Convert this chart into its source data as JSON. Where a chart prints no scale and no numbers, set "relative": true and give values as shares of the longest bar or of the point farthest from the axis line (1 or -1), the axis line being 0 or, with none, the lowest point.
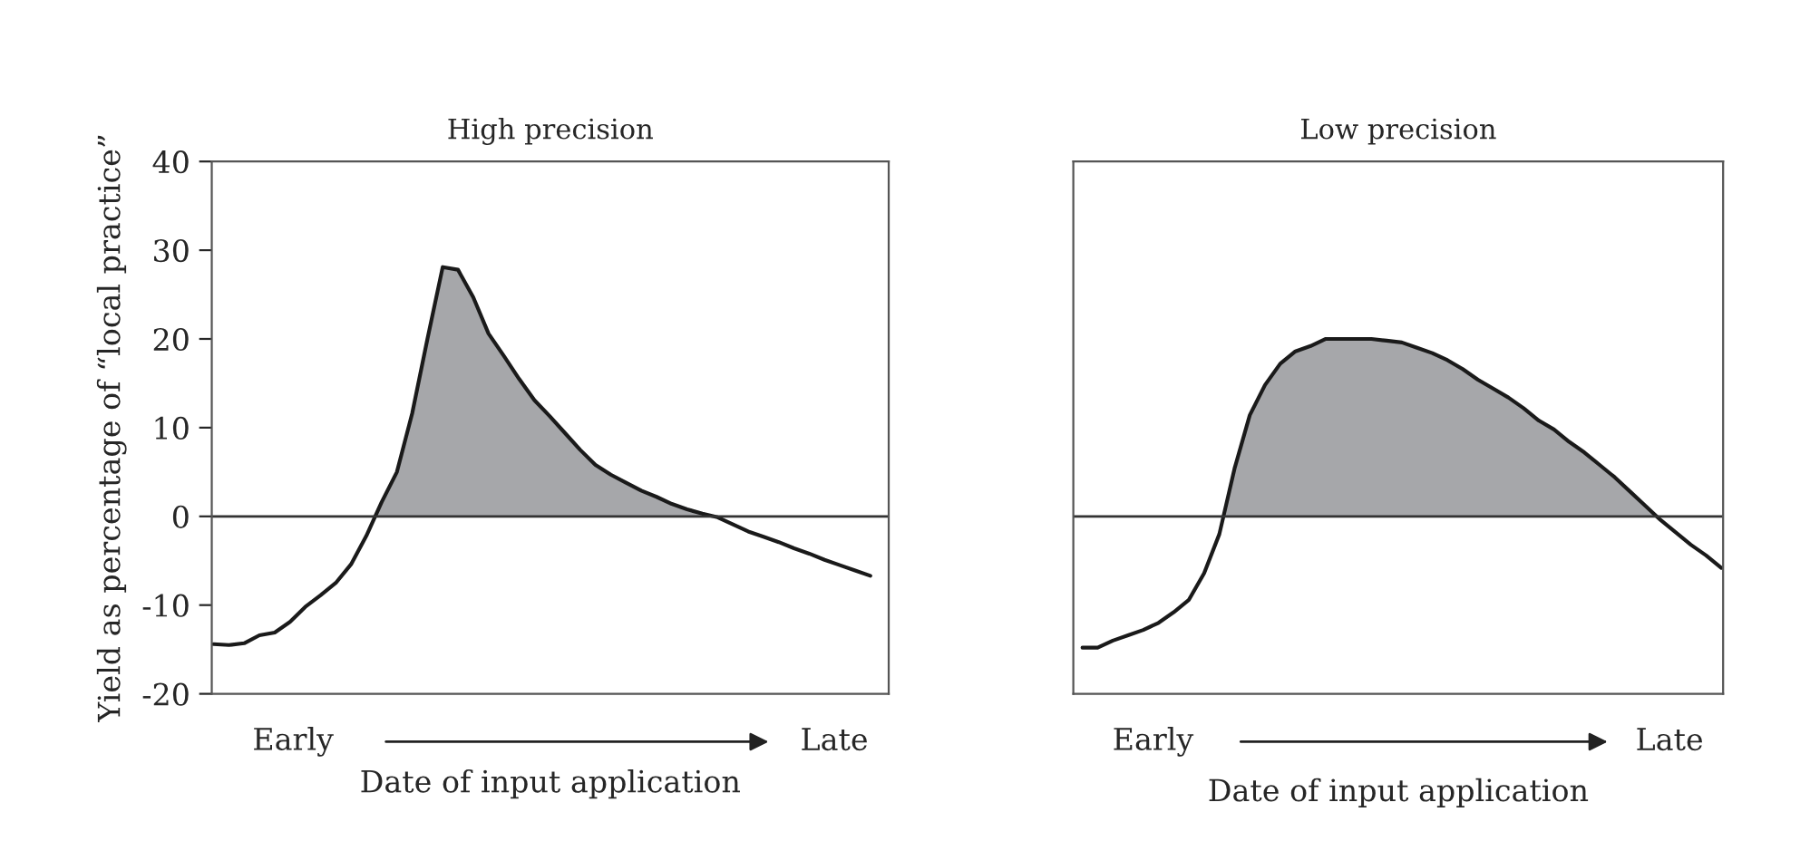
{
  "chart_data": [
    {
      "type": "line",
      "title": "High precision",
      "xlabel": "Date of input application",
      "ylabel": "Yield as percentage of “local practice”",
      "categories": [
        null,
        null,
        null,
        null,
        null,
        null,
        null,
        null,
        null,
        null,
        null,
        null,
        null,
        null,
        null,
        null,
        null,
        null,
        null,
        null,
        null,
        null,
        null,
        null,
        null,
        null,
        null,
        null,
        null,
        null,
        null,
        null,
        null,
        null,
        null,
        null,
        null,
        null,
        null,
        null,
        null,
        null,
        null,
        null
      ],
      "series": [
        {
          "color": "#1a1a1a",
          "values": [
            -14.4,
            -14.5,
            -14.3,
            -13.4,
            -13.1,
            -11.9,
            -10.2,
            -8.9,
            -7.5,
            -5.4,
            -2.2,
            1.6,
            5.0,
            11.6,
            20.0,
            28.1,
            27.8,
            24.7,
            20.6,
            18.1,
            15.5,
            13.1,
            11.3,
            9.4,
            7.5,
            5.8,
            4.7,
            3.8,
            2.9,
            2.2,
            1.4,
            0.8,
            0.3,
            -0.1,
            -0.9,
            -1.7,
            -2.3,
            -2.9,
            -3.6,
            -4.2,
            -4.9,
            -5.5,
            -6.1,
            -6.7
          ]
        }
      ],
      "ylim": [
        -20,
        40
      ],
      "yticks": [
        -20,
        -10,
        0,
        10,
        20,
        30,
        40
      ],
      "tick_labels": "y",
      "ref_lines": [
        {
          "axis": "y",
          "value": 0
        }
      ],
      "annotations": [
        "Early",
        "Late"
      ]
    },
    {
      "type": "line",
      "title": "Low precision",
      "xlabel": "Date of input application",
      "categories": [
        null,
        null,
        null,
        null,
        null,
        null,
        null,
        null,
        null,
        null,
        null,
        null,
        null,
        null,
        null,
        null,
        null,
        null,
        null,
        null,
        null,
        null,
        null,
        null,
        null,
        null,
        null,
        null,
        null,
        null,
        null,
        null,
        null,
        null,
        null,
        null,
        null,
        null,
        null,
        null,
        null,
        null,
        null
      ],
      "series": [
        {
          "color": "#1a1a1a",
          "values": [
            -0.74,
            -0.74,
            -0.7,
            -0.67,
            -0.64,
            -0.6,
            -0.54,
            -0.47,
            -0.32,
            -0.1,
            0.27,
            0.57,
            0.74,
            0.86,
            0.93,
            0.96,
            1.0,
            1.0,
            1.0,
            1.0,
            0.99,
            0.98,
            0.95,
            0.92,
            0.88,
            0.83,
            0.77,
            0.72,
            0.67,
            0.61,
            0.54,
            0.49,
            0.42,
            0.36,
            0.29,
            0.22,
            0.14,
            0.06,
            -0.02,
            -0.09,
            -0.16,
            -0.22,
            -0.29
          ]
        }
      ],
      "relative": true,
      "ref_lines": [
        {
          "axis": "y",
          "value": 0
        }
      ],
      "annotations": [
        "Early",
        "Late"
      ]
    }
  ]
}
